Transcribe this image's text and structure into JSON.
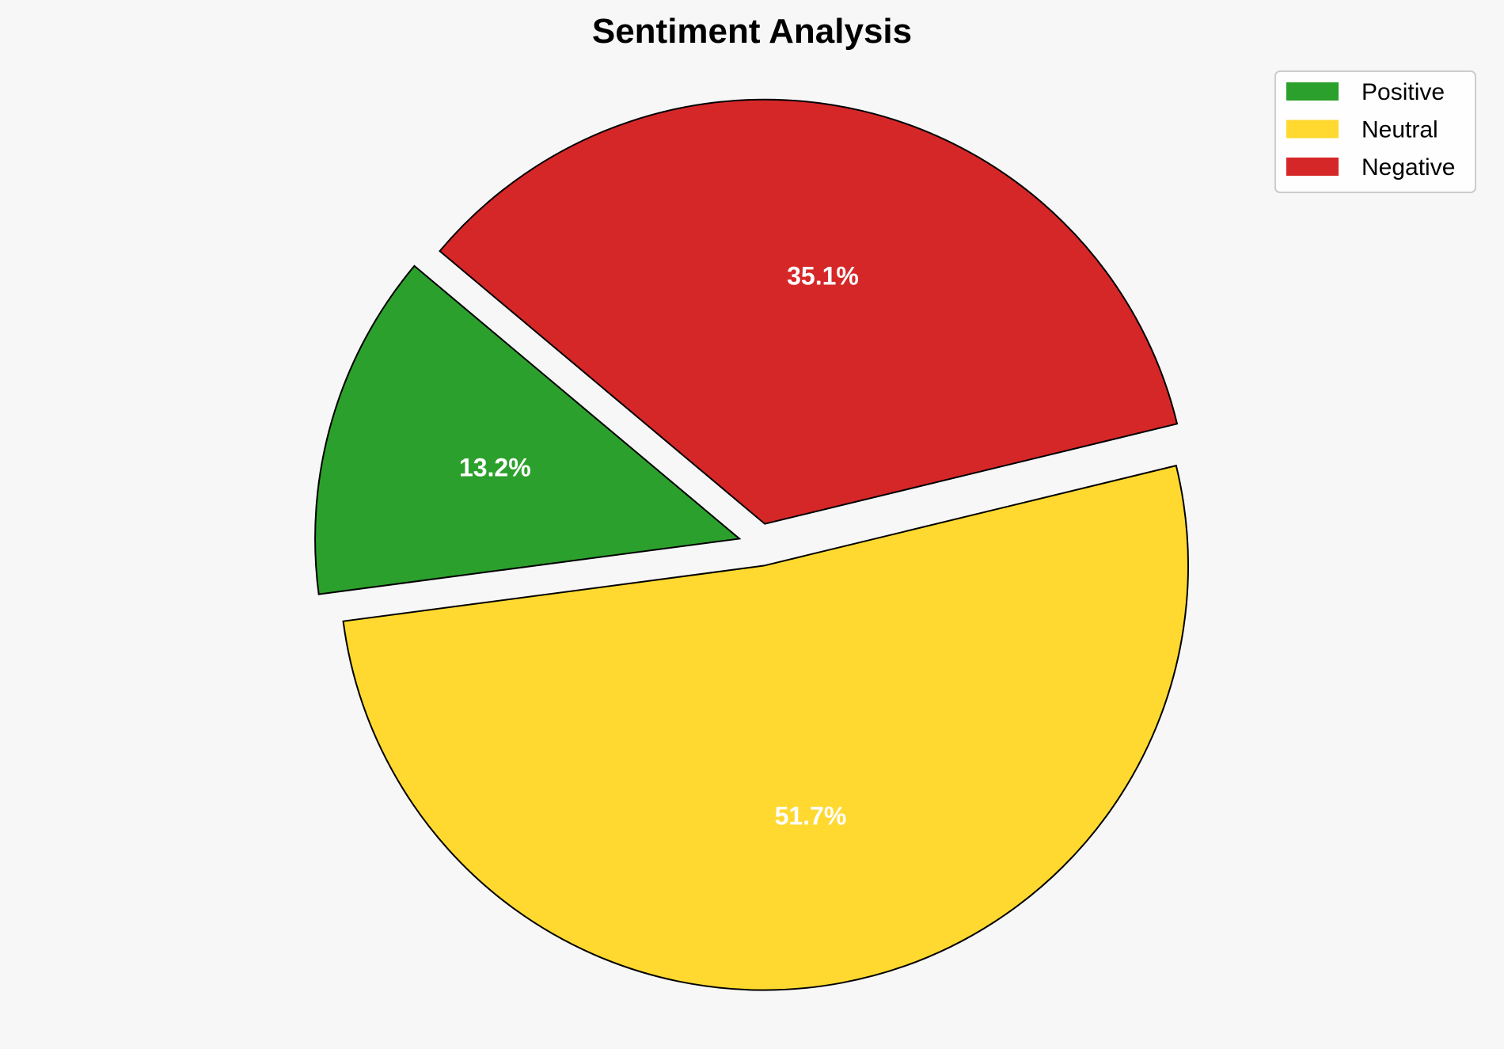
{
  "chart_data": {
    "type": "pie",
    "title": "Sentiment Analysis",
    "categories": [
      "Positive",
      "Neutral",
      "Negative"
    ],
    "values": [
      13.2,
      51.7,
      35.1
    ],
    "labels": [
      "13.2%",
      "51.7%",
      "35.1%"
    ],
    "colors": [
      "#2ca02c",
      "#ffd92f",
      "#d62728"
    ],
    "start_angle_deg": 140,
    "direction": "counterclockwise",
    "exploded": [
      true,
      true,
      true
    ],
    "legend_placement": "top-right",
    "edge_color": "#000000"
  }
}
